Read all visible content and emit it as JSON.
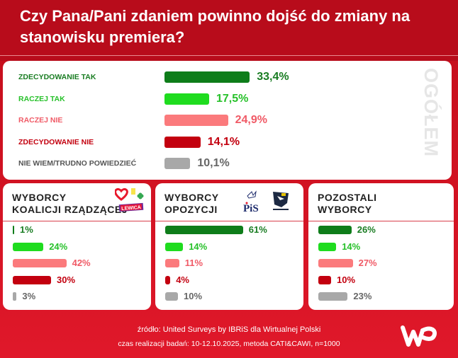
{
  "title": "Czy Pana/Pani zdaniem powinno dojść do zmiany na stanowisku premiera?",
  "colors": {
    "zdecydowanie_tak": "#0e7d1a",
    "raczej_tak": "#1fdc1f",
    "raczej_nie": "#fb7a7c",
    "zdecydowanie_nie": "#c3000f",
    "nie_wiem": "#a8a8a8"
  },
  "chart_data": [
    {
      "type": "bar",
      "title": "OGÓŁEM",
      "categories": [
        "ZDECYDOWANIE TAK",
        "RACZEJ TAK",
        "RACZEJ NIE",
        "ZDECYDOWANIE NIE",
        "NIE WIEM/TRUDNO POWIEDZIEĆ"
      ],
      "values": [
        33.4,
        17.5,
        24.9,
        14.1,
        10.1
      ],
      "value_labels": [
        "33,4%",
        "17,5%",
        "24,9%",
        "14,1%",
        "10,1%"
      ],
      "orientation": "horizontal"
    },
    {
      "type": "bar",
      "title": "WYBORCY KOALICJI RZĄDZĄCEJ",
      "title_lines": [
        "WYBORCY",
        "KOALICJI RZĄDZĄCEJ"
      ],
      "logos": [
        "Koalicja Obywatelska heart",
        "Polska 2050",
        "PSL clover",
        "LEWICA"
      ],
      "categories": [
        "ZDECYDOWANIE TAK",
        "RACZEJ TAK",
        "RACZEJ NIE",
        "ZDECYDOWANIE NIE",
        "NIE WIEM/TRUDNO POWIEDZIEĆ"
      ],
      "values": [
        1,
        24,
        42,
        30,
        3
      ],
      "value_labels": [
        "1%",
        "24%",
        "42%",
        "30%",
        "3%"
      ]
    },
    {
      "type": "bar",
      "title": "WYBORCY OPOZYCJI",
      "title_lines": [
        "WYBORCY",
        "OPOZYCJI"
      ],
      "logos": [
        "PiS",
        "KONFEDERACJA"
      ],
      "categories": [
        "ZDECYDOWANIE TAK",
        "RACZEJ TAK",
        "RACZEJ NIE",
        "ZDECYDOWANIE NIE",
        "NIE WIEM/TRUDNO POWIEDZIEĆ"
      ],
      "values": [
        61,
        14,
        11,
        4,
        10
      ],
      "value_labels": [
        "61%",
        "14%",
        "11%",
        "4%",
        "10%"
      ]
    },
    {
      "type": "bar",
      "title": "POZOSTALI WYBORCY",
      "title_lines": [
        "POZOSTALI",
        "WYBORCY"
      ],
      "categories": [
        "ZDECYDOWANIE TAK",
        "RACZEJ TAK",
        "RACZEJ NIE",
        "ZDECYDOWANIE NIE",
        "NIE WIEM/TRUDNO POWIEDZIEĆ"
      ],
      "values": [
        26,
        14,
        27,
        10,
        23
      ],
      "value_labels": [
        "26%",
        "14%",
        "27%",
        "10%",
        "23%"
      ]
    }
  ],
  "footer": {
    "source": "źródło: United Surveys by IBRiS dla Wirtualnej Polski",
    "method": "czas realizacji badań: 10-12.10.2025, metoda CATI&CAWI, n=1000",
    "logo": "WP"
  }
}
